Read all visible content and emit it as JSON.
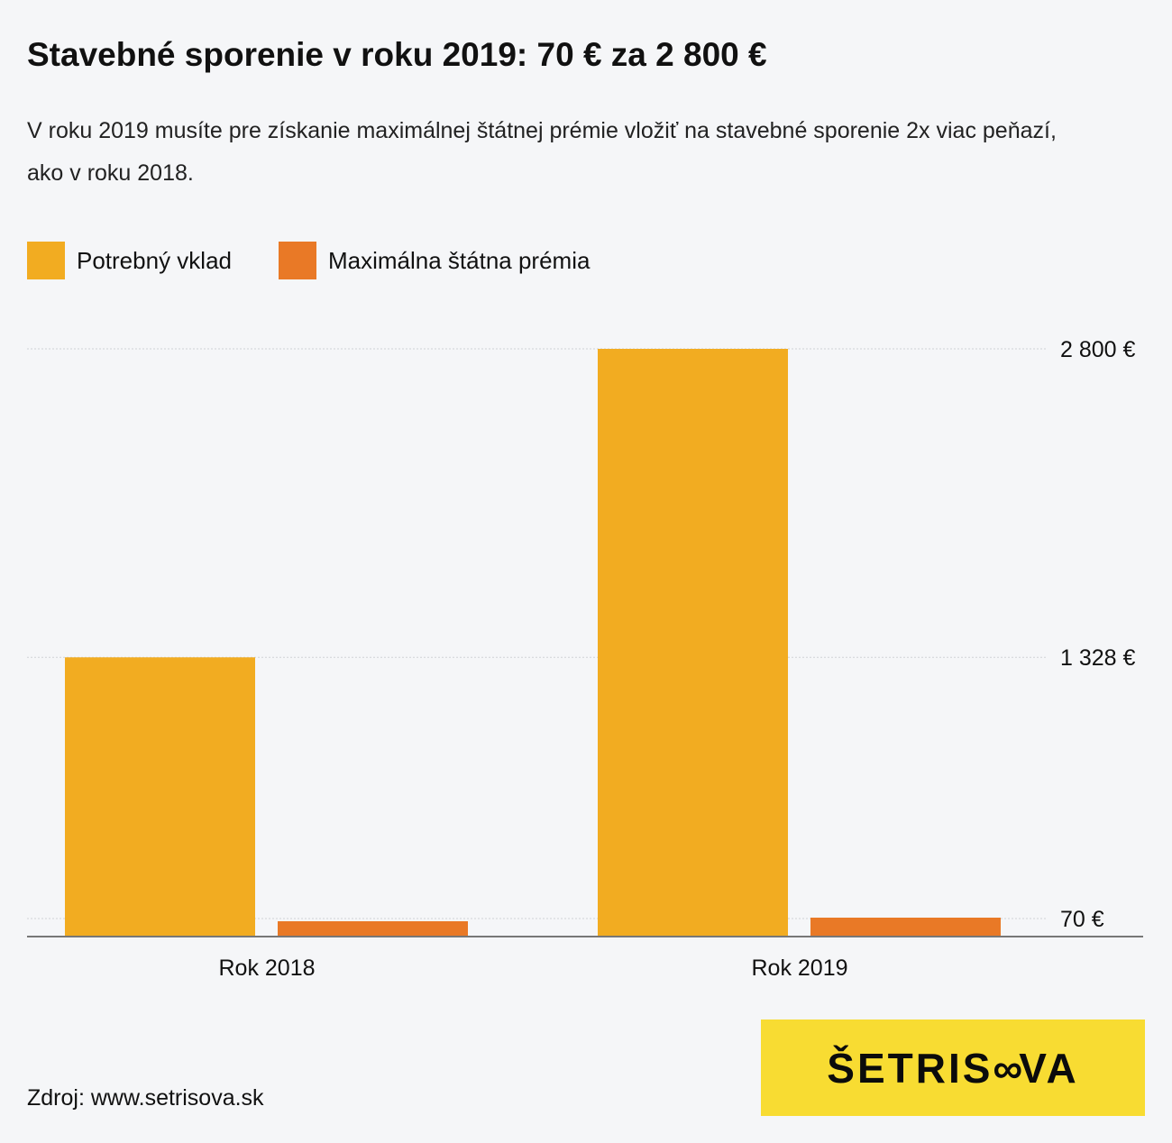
{
  "title": "Stavebné sporenie v roku 2019: 70 € za 2 800 €",
  "subtitle": "V roku 2019 musíte pre získanie maximálnej štátnej prémie vložiť na stavebné sporenie 2x viac peňazí, ako v roku 2018.",
  "source": "Zdroj: www.setrisova.sk",
  "logo_text": "ŠETRISOVA",
  "chart_data": {
    "type": "bar",
    "categories": [
      "Rok 2018",
      "Rok 2019"
    ],
    "series": [
      {
        "name": "Potrebný vklad",
        "color": "#f2ac21",
        "values": [
          1328,
          2800
        ]
      },
      {
        "name": "Maximálna štátna prémia",
        "color": "#e97926",
        "values": [
          66,
          70
        ]
      }
    ],
    "yticks": [
      70,
      1328,
      2800
    ],
    "ytick_labels": [
      "70 €",
      "1 328 €",
      "2 800 €"
    ],
    "ylim": [
      0,
      2800
    ],
    "grid": true,
    "legend": "top-left"
  }
}
